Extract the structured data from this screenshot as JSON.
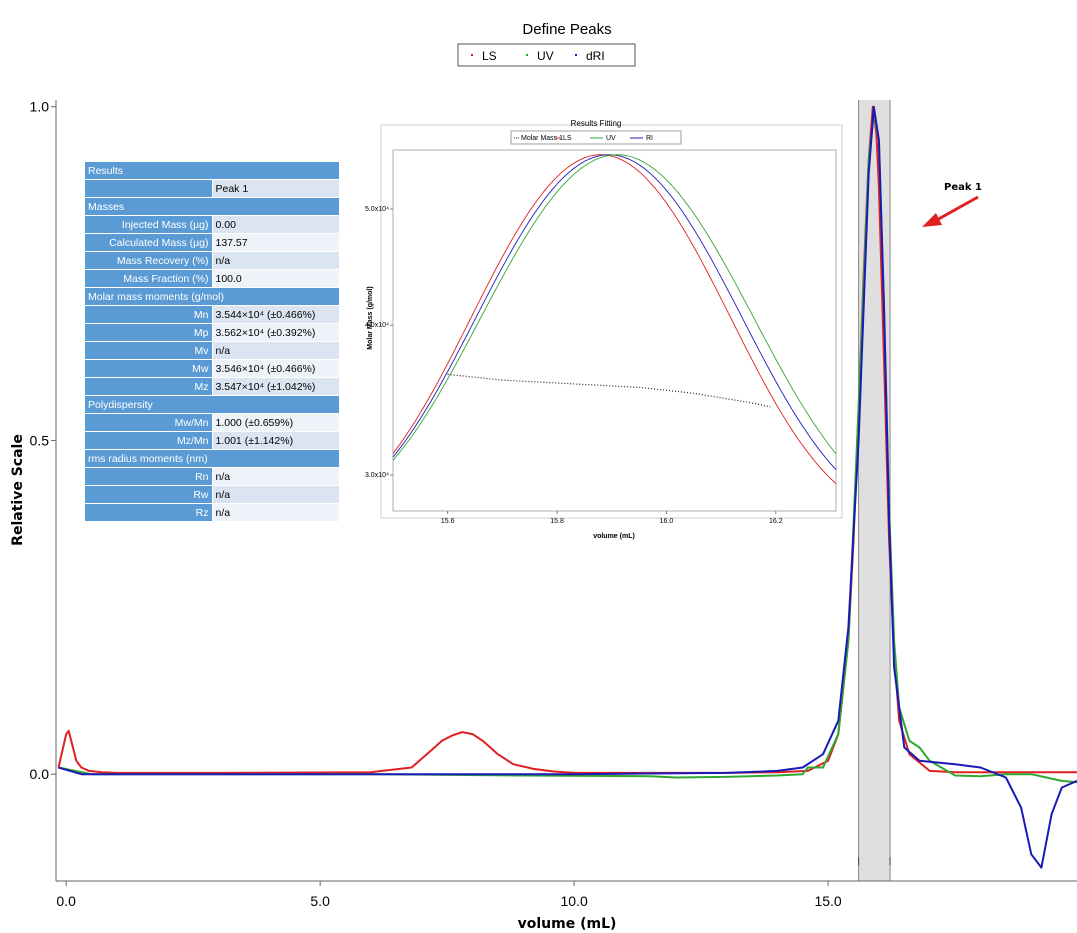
{
  "chart_data": [
    {
      "type": "line",
      "title": "Define Peaks",
      "xlabel": "volume (mL)",
      "ylabel": "Relative Scale",
      "xlim": [
        -0.2,
        19.9
      ],
      "ylim": [
        -0.16,
        1.01
      ],
      "x_ticks": [
        0.0,
        5.0,
        10.0,
        15.0
      ],
      "x_tick_labels": [
        "0.0",
        "5.0",
        "10.0",
        "15.0"
      ],
      "y_ticks": [
        0.0,
        0.5,
        1.0
      ],
      "y_tick_labels": [
        "0.0",
        "0.5",
        "1.0"
      ],
      "legend": {
        "position": "top-center",
        "entries": [
          "LS",
          "UV",
          "dRI"
        ]
      },
      "peak_region": {
        "x_start": 15.6,
        "x_end": 16.22
      },
      "annotation": {
        "text": "Peak 1",
        "arrow_tip": [
          17.1,
          0.82
        ]
      },
      "series": [
        {
          "name": "LS",
          "color": "#e02020",
          "x": [
            -0.15,
            0.0,
            0.05,
            0.1,
            0.15,
            0.2,
            0.3,
            0.45,
            0.7,
            1.0,
            3.0,
            6.0,
            6.8,
            7.1,
            7.4,
            7.6,
            7.8,
            8.0,
            8.2,
            8.5,
            8.8,
            9.2,
            9.6,
            10.0,
            11.0,
            13.0,
            14.0,
            14.6,
            15.0,
            15.2,
            15.4,
            15.5,
            15.6,
            15.7,
            15.8,
            15.88,
            15.95,
            16.0,
            16.1,
            16.2,
            16.3,
            16.4,
            16.6,
            17.0,
            17.5,
            18.0,
            19.0,
            19.9
          ],
          "y": [
            0.01,
            0.06,
            0.065,
            0.05,
            0.035,
            0.02,
            0.01,
            0.005,
            0.003,
            0.002,
            0.002,
            0.003,
            0.01,
            0.03,
            0.05,
            0.058,
            0.063,
            0.06,
            0.05,
            0.03,
            0.015,
            0.008,
            0.004,
            0.002,
            0.002,
            0.002,
            0.003,
            0.005,
            0.02,
            0.06,
            0.2,
            0.35,
            0.55,
            0.75,
            0.92,
            1.0,
            0.96,
            0.88,
            0.62,
            0.35,
            0.18,
            0.08,
            0.03,
            0.005,
            0.003,
            0.003,
            0.003,
            0.003
          ]
        },
        {
          "name": "UV",
          "color": "#30a830",
          "x": [
            -0.15,
            0.5,
            2.0,
            6.0,
            9.0,
            11.5,
            12.0,
            13.0,
            14.0,
            14.5,
            14.6,
            14.9,
            15.2,
            15.4,
            15.6,
            15.8,
            15.9,
            16.0,
            16.1,
            16.2,
            16.3,
            16.4,
            16.6,
            16.8,
            17.0,
            17.5,
            18.0,
            18.5,
            19.0,
            19.3,
            19.6,
            19.9
          ],
          "y": [
            0.01,
            0.0,
            0.0,
            0.0,
            -0.002,
            -0.003,
            -0.005,
            -0.004,
            -0.002,
            0.0,
            0.01,
            0.01,
            0.06,
            0.2,
            0.55,
            0.92,
            0.99,
            0.95,
            0.7,
            0.4,
            0.2,
            0.1,
            0.05,
            0.04,
            0.02,
            -0.002,
            -0.003,
            0.0,
            0.0,
            -0.005,
            -0.01,
            -0.012
          ]
        },
        {
          "name": "dRI",
          "color": "#1a1ab8",
          "x": [
            -0.15,
            0.3,
            1.0,
            5.0,
            10.0,
            13.0,
            14.0,
            14.5,
            14.9,
            15.2,
            15.4,
            15.6,
            15.8,
            15.9,
            16.0,
            16.1,
            16.2,
            16.3,
            16.5,
            16.8,
            17.5,
            18.0,
            18.5,
            18.8,
            19.0,
            19.2,
            19.4,
            19.6,
            19.9
          ],
          "y": [
            0.01,
            0.0,
            0.0,
            0.0,
            0.0,
            0.002,
            0.005,
            0.01,
            0.03,
            0.08,
            0.22,
            0.5,
            0.9,
            1.0,
            0.95,
            0.7,
            0.38,
            0.16,
            0.04,
            0.02,
            0.015,
            0.01,
            -0.005,
            -0.05,
            -0.12,
            -0.14,
            -0.06,
            -0.02,
            -0.01
          ]
        }
      ]
    },
    {
      "type": "line",
      "title": "Results Fitting",
      "xlabel": "volume (mL)",
      "ylabel": "Molar Mass (g/mol)",
      "xlim": [
        15.5,
        16.31
      ],
      "x_ticks": [
        15.6,
        15.8,
        16.0,
        16.2
      ],
      "x_tick_labels": [
        "15.6",
        "15.8",
        "16.0",
        "16.2"
      ],
      "y_scale": "log",
      "ylim": [
        28000,
        56000
      ],
      "y_tick_labels": [
        "3.0x10⁴",
        "4.0x10⁴",
        "5.0x10⁴"
      ],
      "legend": {
        "position": "top-center",
        "entries": [
          "Molar Mass 1",
          "LS",
          "UV",
          "RI"
        ]
      },
      "series": [
        {
          "name": "Molar Mass 1",
          "color": "#222222",
          "x": [
            15.6,
            15.65,
            15.7,
            15.75,
            15.8,
            15.85,
            15.9,
            15.95,
            16.0,
            16.05,
            16.1,
            16.15,
            16.19
          ],
          "y": [
            36400,
            36200,
            36000,
            35900,
            35800,
            35700,
            35600,
            35500,
            35300,
            35100,
            34800,
            34500,
            34200
          ]
        }
      ]
    }
  ],
  "results_table": {
    "header": "Results",
    "column": "Peak 1",
    "sections": [
      {
        "title": "Masses",
        "rows": [
          {
            "label": "Injected Mass (µg)",
            "value": "0.00"
          },
          {
            "label": "Calculated Mass (µg)",
            "value": "137.57"
          },
          {
            "label": "Mass Recovery (%)",
            "value": "n/a"
          },
          {
            "label": "Mass Fraction (%)",
            "value": "100.0"
          }
        ]
      },
      {
        "title": "Molar mass moments (g/mol)",
        "rows": [
          {
            "label": "Mn",
            "value": "3.544×10⁴ (±0.466%)"
          },
          {
            "label": "Mp",
            "value": "3.562×10⁴ (±0.392%)"
          },
          {
            "label": "Mv",
            "value": "n/a"
          },
          {
            "label": "Mw",
            "value": "3.546×10⁴ (±0.466%)"
          },
          {
            "label": "Mz",
            "value": "3.547×10⁴ (±1.042%)"
          }
        ]
      },
      {
        "title": "Polydispersity",
        "rows": [
          {
            "label": "Mw/Mn",
            "value": "1.000 (±0.659%)"
          },
          {
            "label": "Mz/Mn",
            "value": "1.001 (±1.142%)"
          }
        ]
      },
      {
        "title": "rms radius moments (nm)",
        "rows": [
          {
            "label": "Rn",
            "value": "n/a"
          },
          {
            "label": "Rw",
            "value": "n/a"
          },
          {
            "label": "Rz",
            "value": "n/a"
          }
        ]
      }
    ]
  }
}
